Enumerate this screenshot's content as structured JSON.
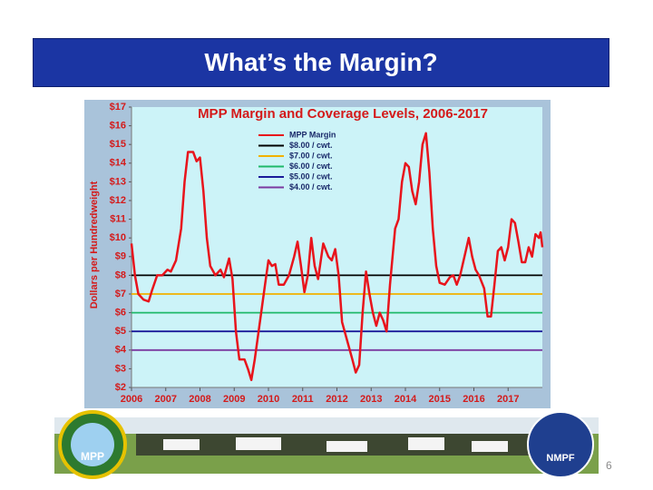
{
  "slide": {
    "title": "What’s the Margin?",
    "page_number": "6"
  },
  "logos": {
    "left": "MPP",
    "right": "NMPF"
  },
  "chart_data": {
    "type": "line",
    "title": "MPP Margin and Coverage Levels, 2006-2017",
    "y_label": "Dollars per Hundredweight",
    "xlim": [
      2006,
      2018
    ],
    "xticks": [
      2006,
      2007,
      2008,
      2009,
      2010,
      2011,
      2012,
      2013,
      2014,
      2015,
      2016,
      2017
    ],
    "ylim": [
      2,
      17
    ],
    "yticks": [
      {
        "value": 2,
        "label": "$2"
      },
      {
        "value": 3,
        "label": "$3"
      },
      {
        "value": 4,
        "label": "$4"
      },
      {
        "value": 5,
        "label": "$5"
      },
      {
        "value": 6,
        "label": "$6"
      },
      {
        "value": 7,
        "label": "$7"
      },
      {
        "value": 8,
        "label": "$8"
      },
      {
        "value": 9,
        "label": "$9"
      },
      {
        "value": 10,
        "label": "$10"
      },
      {
        "value": 11,
        "label": "$11"
      },
      {
        "value": 12,
        "label": "$12"
      },
      {
        "value": 13,
        "label": "$13"
      },
      {
        "value": 14,
        "label": "$14"
      },
      {
        "value": 15,
        "label": "$15"
      },
      {
        "value": 16,
        "label": "$16"
      },
      {
        "value": 17,
        "label": "$17"
      }
    ],
    "grid": false,
    "legend": "top",
    "series": [
      {
        "name": "MPP Margin",
        "color": "#e8141c",
        "x": [
          2006.0,
          2006.1,
          2006.2,
          2006.35,
          2006.5,
          2006.6,
          2006.75,
          2006.9,
          2007.05,
          2007.15,
          2007.3,
          2007.45,
          2007.55,
          2007.65,
          2007.8,
          2007.9,
          2008.0,
          2008.1,
          2008.2,
          2008.3,
          2008.45,
          2008.6,
          2008.7,
          2008.85,
          2008.95,
          2009.05,
          2009.15,
          2009.3,
          2009.4,
          2009.5,
          2009.6,
          2009.75,
          2009.9,
          2010.0,
          2010.1,
          2010.2,
          2010.3,
          2010.45,
          2010.6,
          2010.75,
          2010.85,
          2010.95,
          2011.05,
          2011.15,
          2011.25,
          2011.35,
          2011.45,
          2011.6,
          2011.75,
          2011.85,
          2011.95,
          2012.05,
          2012.15,
          2012.3,
          2012.45,
          2012.55,
          2012.65,
          2012.75,
          2012.85,
          2012.95,
          2013.05,
          2013.15,
          2013.25,
          2013.35,
          2013.45,
          2013.55,
          2013.7,
          2013.8,
          2013.9,
          2014.0,
          2014.1,
          2014.2,
          2014.3,
          2014.4,
          2014.5,
          2014.6,
          2014.7,
          2014.8,
          2014.9,
          2015.0,
          2015.15,
          2015.3,
          2015.4,
          2015.5,
          2015.6,
          2015.75,
          2015.85,
          2015.95,
          2016.05,
          2016.15,
          2016.3,
          2016.4,
          2016.5,
          2016.6,
          2016.7,
          2016.8,
          2016.9,
          2017.0,
          2017.1,
          2017.2,
          2017.3,
          2017.4,
          2017.5,
          2017.6,
          2017.7,
          2017.8,
          2017.9,
          2017.95,
          2018.0
        ],
        "values": [
          9.7,
          8.0,
          7.0,
          6.7,
          6.6,
          7.2,
          8.0,
          8.0,
          8.3,
          8.2,
          8.8,
          10.5,
          13.0,
          14.6,
          14.6,
          14.1,
          14.3,
          12.5,
          10.0,
          8.5,
          8.0,
          8.3,
          7.9,
          8.9,
          7.8,
          5.0,
          3.5,
          3.5,
          3.0,
          2.4,
          3.5,
          5.5,
          7.5,
          8.8,
          8.5,
          8.6,
          7.5,
          7.5,
          8.0,
          9.0,
          9.8,
          8.5,
          7.1,
          8.0,
          10.0,
          8.5,
          7.8,
          9.7,
          9.0,
          8.8,
          9.4,
          8.0,
          5.5,
          4.5,
          3.5,
          2.8,
          3.2,
          6.0,
          8.2,
          7.0,
          6.0,
          5.3,
          6.0,
          5.6,
          5.0,
          7.5,
          10.5,
          11.0,
          13.0,
          14.0,
          13.8,
          12.5,
          11.8,
          13.0,
          15.0,
          15.6,
          13.5,
          10.5,
          8.5,
          7.6,
          7.5,
          7.9,
          8.0,
          7.5,
          8.0,
          9.2,
          10.0,
          9.0,
          8.3,
          8.0,
          7.3,
          5.8,
          5.8,
          7.5,
          9.3,
          9.5,
          8.8,
          9.5,
          11.0,
          10.8,
          9.8,
          8.7,
          8.7,
          9.5,
          9.0,
          10.2,
          10.0,
          10.3,
          9.5
        ]
      },
      {
        "name": "$8.00 / cwt.",
        "color": "#000000",
        "x": [
          2006,
          2018
        ],
        "values": [
          8,
          8
        ]
      },
      {
        "name": "$7.00 / cwt.",
        "color": "#f2b100",
        "x": [
          2006,
          2018
        ],
        "values": [
          7,
          7
        ]
      },
      {
        "name": "$6.00 / cwt.",
        "color": "#1fb86a",
        "x": [
          2006,
          2018
        ],
        "values": [
          6,
          6
        ]
      },
      {
        "name": "$5.00 / cwt.",
        "color": "#1a1a9a",
        "x": [
          2006,
          2018
        ],
        "values": [
          5,
          5
        ]
      },
      {
        "name": "$4.00 / cwt.",
        "color": "#7b3aa0",
        "x": [
          2006,
          2018
        ],
        "values": [
          4,
          4
        ]
      }
    ]
  }
}
